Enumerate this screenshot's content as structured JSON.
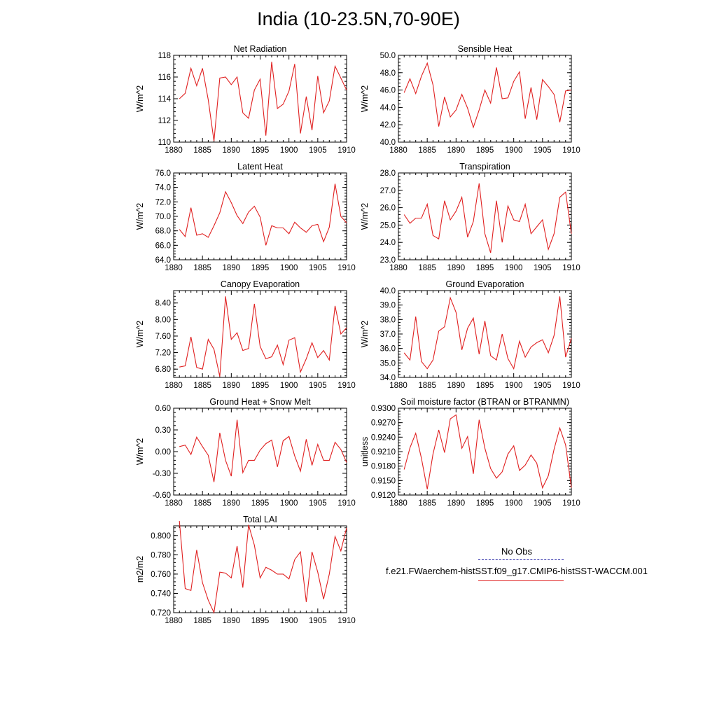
{
  "title": "India (10-23.5N,70-90E)",
  "legend": {
    "obs_label": "No Obs",
    "run_label": "f.e21.FWaerchem-histSST.f09_g17.CMIP6-histSST-WACCM.001",
    "obs_color": "#1a1aa0",
    "run_color": "#e02020"
  },
  "chart_data": [
    {
      "type": "line",
      "title": "Net Radiation",
      "ylabel": "W/m^2",
      "xlim": [
        1880,
        1910
      ],
      "ylim": [
        110,
        118
      ],
      "yticks": [
        "110",
        "112",
        "114",
        "116",
        "118"
      ],
      "xticks": [
        "1880",
        "1885",
        "1890",
        "1895",
        "1900",
        "1905",
        "1910"
      ],
      "x": [
        1881,
        1882,
        1883,
        1884,
        1885,
        1886,
        1887,
        1888,
        1889,
        1890,
        1891,
        1892,
        1893,
        1894,
        1895,
        1896,
        1897,
        1898,
        1899,
        1900,
        1901,
        1902,
        1903,
        1904,
        1905,
        1906,
        1907,
        1908,
        1909,
        1910
      ],
      "series": [
        {
          "values": [
            114.0,
            114.5,
            116.8,
            115.2,
            116.8,
            113.9,
            110.1,
            115.9,
            116.0,
            115.3,
            116.0,
            112.7,
            112.2,
            114.8,
            115.8,
            110.6,
            117.4,
            113.1,
            113.5,
            114.7,
            117.2,
            110.8,
            114.2,
            111.1,
            116.1,
            112.7,
            113.8,
            117.0,
            115.9,
            114.8
          ],
          "color": "#e02020"
        }
      ]
    },
    {
      "type": "line",
      "title": "Sensible Heat",
      "ylabel": "W/m^2",
      "xlim": [
        1880,
        1910
      ],
      "ylim": [
        40,
        50
      ],
      "yticks": [
        "40.0",
        "42.0",
        "44.0",
        "46.0",
        "48.0",
        "50.0"
      ],
      "xticks": [
        "1880",
        "1885",
        "1890",
        "1895",
        "1900",
        "1905",
        "1910"
      ],
      "x": [
        1881,
        1882,
        1883,
        1884,
        1885,
        1886,
        1887,
        1888,
        1889,
        1890,
        1891,
        1892,
        1893,
        1894,
        1895,
        1896,
        1897,
        1898,
        1899,
        1900,
        1901,
        1902,
        1903,
        1904,
        1905,
        1906,
        1907,
        1908,
        1909,
        1910
      ],
      "series": [
        {
          "values": [
            45.7,
            47.3,
            45.6,
            47.6,
            49.1,
            46.6,
            41.8,
            45.2,
            42.9,
            43.7,
            45.5,
            43.9,
            41.7,
            43.7,
            46.0,
            44.5,
            48.6,
            45.0,
            45.1,
            47.0,
            48.1,
            42.7,
            46.3,
            42.6,
            47.2,
            46.4,
            45.5,
            42.3,
            45.9,
            46.0
          ],
          "color": "#e02020"
        }
      ]
    },
    {
      "type": "line",
      "title": "Latent Heat",
      "ylabel": "W/m^2",
      "xlim": [
        1880,
        1910
      ],
      "ylim": [
        64,
        76
      ],
      "yticks": [
        "64.0",
        "66.0",
        "68.0",
        "70.0",
        "72.0",
        "74.0",
        "76.0"
      ],
      "xticks": [
        "1880",
        "1885",
        "1890",
        "1895",
        "1900",
        "1905",
        "1910"
      ],
      "x": [
        1881,
        1882,
        1883,
        1884,
        1885,
        1886,
        1887,
        1888,
        1889,
        1890,
        1891,
        1892,
        1893,
        1894,
        1895,
        1896,
        1897,
        1898,
        1899,
        1900,
        1901,
        1902,
        1903,
        1904,
        1905,
        1906,
        1907,
        1908,
        1909,
        1910
      ],
      "series": [
        {
          "values": [
            68.2,
            67.2,
            71.2,
            67.4,
            67.6,
            67.1,
            68.7,
            70.5,
            73.4,
            71.9,
            70.1,
            69.0,
            70.6,
            71.4,
            69.9,
            66.0,
            68.7,
            68.4,
            68.4,
            67.6,
            69.2,
            68.4,
            67.8,
            68.7,
            68.9,
            66.5,
            68.5,
            74.5,
            70.0,
            69.1
          ],
          "color": "#e02020"
        }
      ]
    },
    {
      "type": "line",
      "title": "Transpiration",
      "ylabel": "W/m^2",
      "xlim": [
        1880,
        1910
      ],
      "ylim": [
        23,
        28
      ],
      "yticks": [
        "23.0",
        "24.0",
        "25.0",
        "26.0",
        "27.0",
        "28.0"
      ],
      "xticks": [
        "1880",
        "1885",
        "1890",
        "1895",
        "1900",
        "1905",
        "1910"
      ],
      "x": [
        1881,
        1882,
        1883,
        1884,
        1885,
        1886,
        1887,
        1888,
        1889,
        1890,
        1891,
        1892,
        1893,
        1894,
        1895,
        1896,
        1897,
        1898,
        1899,
        1900,
        1901,
        1902,
        1903,
        1904,
        1905,
        1906,
        1907,
        1908,
        1909,
        1910
      ],
      "series": [
        {
          "values": [
            25.6,
            25.1,
            25.4,
            25.4,
            26.2,
            24.4,
            24.2,
            26.4,
            25.3,
            25.8,
            26.6,
            24.3,
            25.2,
            27.4,
            24.5,
            23.4,
            26.4,
            24.0,
            26.1,
            25.3,
            25.2,
            26.2,
            24.5,
            24.9,
            25.3,
            23.6,
            24.5,
            26.6,
            26.9,
            24.5
          ],
          "color": "#e02020"
        }
      ]
    },
    {
      "type": "line",
      "title": "Canopy Evaporation",
      "ylabel": "W/m^2",
      "xlim": [
        1880,
        1910
      ],
      "ylim": [
        6.6,
        8.7
      ],
      "yticks": [
        "6.80",
        "7.20",
        "7.60",
        "8.00",
        "8.40"
      ],
      "xticks": [
        "1880",
        "1885",
        "1890",
        "1895",
        "1900",
        "1905",
        "1910"
      ],
      "x": [
        1881,
        1882,
        1883,
        1884,
        1885,
        1886,
        1887,
        1888,
        1889,
        1890,
        1891,
        1892,
        1893,
        1894,
        1895,
        1896,
        1897,
        1898,
        1899,
        1900,
        1901,
        1902,
        1903,
        1904,
        1905,
        1906,
        1907,
        1908,
        1909,
        1910
      ],
      "series": [
        {
          "values": [
            6.85,
            6.88,
            7.58,
            6.84,
            6.8,
            7.52,
            7.28,
            6.62,
            8.56,
            7.52,
            7.68,
            7.25,
            7.3,
            8.38,
            7.35,
            7.05,
            7.1,
            7.38,
            6.91,
            7.5,
            7.56,
            6.73,
            7.05,
            7.44,
            7.08,
            7.25,
            7.02,
            8.33,
            7.65,
            7.8
          ],
          "color": "#e02020"
        }
      ]
    },
    {
      "type": "line",
      "title": "Ground Evaporation",
      "ylabel": "W/m^2",
      "xlim": [
        1880,
        1910
      ],
      "ylim": [
        34,
        40
      ],
      "yticks": [
        "34.0",
        "35.0",
        "36.0",
        "37.0",
        "38.0",
        "39.0",
        "40.0"
      ],
      "xticks": [
        "1880",
        "1885",
        "1890",
        "1895",
        "1900",
        "1905",
        "1910"
      ],
      "x": [
        1881,
        1882,
        1883,
        1884,
        1885,
        1886,
        1887,
        1888,
        1889,
        1890,
        1891,
        1892,
        1893,
        1894,
        1895,
        1896,
        1897,
        1898,
        1899,
        1900,
        1901,
        1902,
        1903,
        1904,
        1905,
        1906,
        1907,
        1908,
        1909,
        1910
      ],
      "series": [
        {
          "values": [
            35.7,
            35.2,
            38.2,
            35.1,
            34.6,
            35.2,
            37.2,
            37.5,
            39.5,
            38.5,
            35.9,
            37.4,
            38.1,
            35.6,
            37.9,
            35.5,
            35.2,
            37.0,
            35.3,
            34.6,
            36.5,
            35.4,
            36.1,
            36.4,
            36.6,
            35.7,
            36.9,
            39.6,
            35.4,
            36.7
          ],
          "color": "#e02020"
        }
      ]
    },
    {
      "type": "line",
      "title": "Ground Heat + Snow Melt",
      "ylabel": "W/m^2",
      "xlim": [
        1880,
        1910
      ],
      "ylim": [
        -0.6,
        0.6
      ],
      "yticks": [
        "-0.60",
        "-0.30",
        "0.00",
        "0.30",
        "0.60"
      ],
      "xticks": [
        "1880",
        "1885",
        "1890",
        "1895",
        "1900",
        "1905",
        "1910"
      ],
      "x": [
        1881,
        1882,
        1883,
        1884,
        1885,
        1886,
        1887,
        1888,
        1889,
        1890,
        1891,
        1892,
        1893,
        1894,
        1895,
        1896,
        1897,
        1898,
        1899,
        1900,
        1901,
        1902,
        1903,
        1904,
        1905,
        1906,
        1907,
        1908,
        1909,
        1910
      ],
      "series": [
        {
          "values": [
            0.07,
            0.09,
            -0.04,
            0.2,
            0.07,
            -0.05,
            -0.42,
            0.26,
            -0.12,
            -0.34,
            0.44,
            -0.29,
            -0.12,
            -0.12,
            0.02,
            0.11,
            0.16,
            -0.21,
            0.15,
            0.21,
            -0.06,
            -0.27,
            0.17,
            -0.19,
            0.1,
            -0.12,
            -0.12,
            0.13,
            0.03,
            -0.15
          ],
          "color": "#e02020"
        }
      ]
    },
    {
      "type": "line",
      "title": "Soil moisture factor (BTRAN or BTRANMN)",
      "ylabel": "unitless",
      "xlim": [
        1880,
        1910
      ],
      "ylim": [
        0.912,
        0.93
      ],
      "yticks": [
        "0.9120",
        "0.9150",
        "0.9180",
        "0.9210",
        "0.9240",
        "0.9270",
        "0.9300"
      ],
      "xticks": [
        "1880",
        "1885",
        "1890",
        "1895",
        "1900",
        "1905",
        "1910"
      ],
      "x": [
        1881,
        1882,
        1883,
        1884,
        1885,
        1886,
        1887,
        1888,
        1889,
        1890,
        1891,
        1892,
        1893,
        1894,
        1895,
        1896,
        1897,
        1898,
        1899,
        1900,
        1901,
        1902,
        1903,
        1904,
        1905,
        1906,
        1907,
        1908,
        1909,
        1910
      ],
      "series": [
        {
          "values": [
            0.9173,
            0.9218,
            0.9248,
            0.9196,
            0.9132,
            0.9205,
            0.9255,
            0.9208,
            0.9278,
            0.9286,
            0.9217,
            0.9241,
            0.9164,
            0.9276,
            0.9217,
            0.9175,
            0.9155,
            0.9168,
            0.9205,
            0.9222,
            0.9171,
            0.9182,
            0.9203,
            0.9186,
            0.9135,
            0.916,
            0.9215,
            0.9259,
            0.9224,
            0.9135
          ],
          "color": "#e02020"
        }
      ]
    },
    {
      "type": "line",
      "title": "Total LAI",
      "ylabel": "m2/m2",
      "xlim": [
        1880,
        1910
      ],
      "ylim": [
        0.72,
        0.81
      ],
      "yticks": [
        "0.720",
        "0.740",
        "0.760",
        "0.780",
        "0.800"
      ],
      "xticks": [
        "1880",
        "1885",
        "1890",
        "1895",
        "1900",
        "1905",
        "1910"
      ],
      "x": [
        1881,
        1882,
        1883,
        1884,
        1885,
        1886,
        1887,
        1888,
        1889,
        1890,
        1891,
        1892,
        1893,
        1894,
        1895,
        1896,
        1897,
        1898,
        1899,
        1900,
        1901,
        1902,
        1903,
        1904,
        1905,
        1906,
        1907,
        1908,
        1909,
        1910
      ],
      "series": [
        {
          "values": [
            0.815,
            0.745,
            0.743,
            0.785,
            0.751,
            0.733,
            0.72,
            0.762,
            0.761,
            0.756,
            0.789,
            0.746,
            0.811,
            0.79,
            0.756,
            0.767,
            0.764,
            0.76,
            0.76,
            0.755,
            0.775,
            0.783,
            0.731,
            0.783,
            0.762,
            0.734,
            0.76,
            0.799,
            0.784,
            0.808
          ],
          "color": "#e02020"
        }
      ]
    }
  ]
}
